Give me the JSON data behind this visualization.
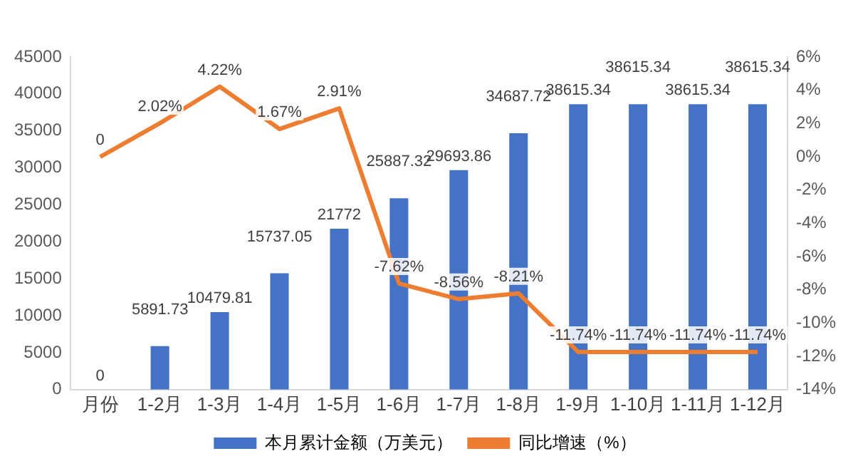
{
  "chart_data": {
    "type": "bar",
    "categories": [
      "月份",
      "1-2月",
      "1-3月",
      "1-4月",
      "1-5月",
      "1-6月",
      "1-7月",
      "1-8月",
      "1-9月",
      "1-10月",
      "1-11月",
      "1-12月"
    ],
    "series": [
      {
        "name": "本月累计金额（万美元）",
        "color": "#4472c4",
        "values": [
          0,
          5891.73,
          10479.81,
          15737.05,
          21772,
          25887.32,
          29693.86,
          34687.72,
          38615.34,
          38615.34,
          38615.34,
          38615.34
        ],
        "value_labels": [
          "0",
          "5891.73",
          "10479.81",
          "15737.05",
          "21772",
          "25887.32",
          "29693.86",
          "34687.72",
          "38615.34",
          "38615.34",
          "38615.34",
          "38615.34"
        ]
      },
      {
        "name": "同比增速（%）",
        "type": "line",
        "axis": "y2",
        "color": "#ed7d31",
        "values": [
          0,
          2.02,
          4.22,
          1.67,
          2.91,
          -7.62,
          -8.56,
          -8.21,
          -11.74,
          -11.74,
          -11.74,
          -11.74
        ],
        "value_labels": [
          "0",
          "2.02%",
          "4.22%",
          "1.67%",
          "2.91%",
          "-7.62%",
          "-8.56%",
          "-8.21%",
          "-11.74%",
          "-11.74%",
          "-11.74%",
          "-11.74%"
        ]
      }
    ],
    "ylim": [
      0,
      45000
    ],
    "yticks": [
      0,
      5000,
      10000,
      15000,
      20000,
      25000,
      30000,
      35000,
      40000,
      45000
    ],
    "y2lim": [
      -14,
      6
    ],
    "y2ticks": [
      {
        "value": -14,
        "label": "-14%"
      },
      {
        "value": -12,
        "label": "-12%"
      },
      {
        "value": -10,
        "label": "-10%"
      },
      {
        "value": -8,
        "label": "-8%"
      },
      {
        "value": -6,
        "label": "-6%"
      },
      {
        "value": -4,
        "label": "-4%"
      },
      {
        "value": -2,
        "label": "-2%"
      },
      {
        "value": 0,
        "label": "0%"
      },
      {
        "value": 2,
        "label": "2%"
      },
      {
        "value": 4,
        "label": "4%"
      },
      {
        "value": 6,
        "label": "6%"
      }
    ],
    "grid": false,
    "legend": "bottom",
    "marker": "none",
    "line_style": "solid"
  }
}
